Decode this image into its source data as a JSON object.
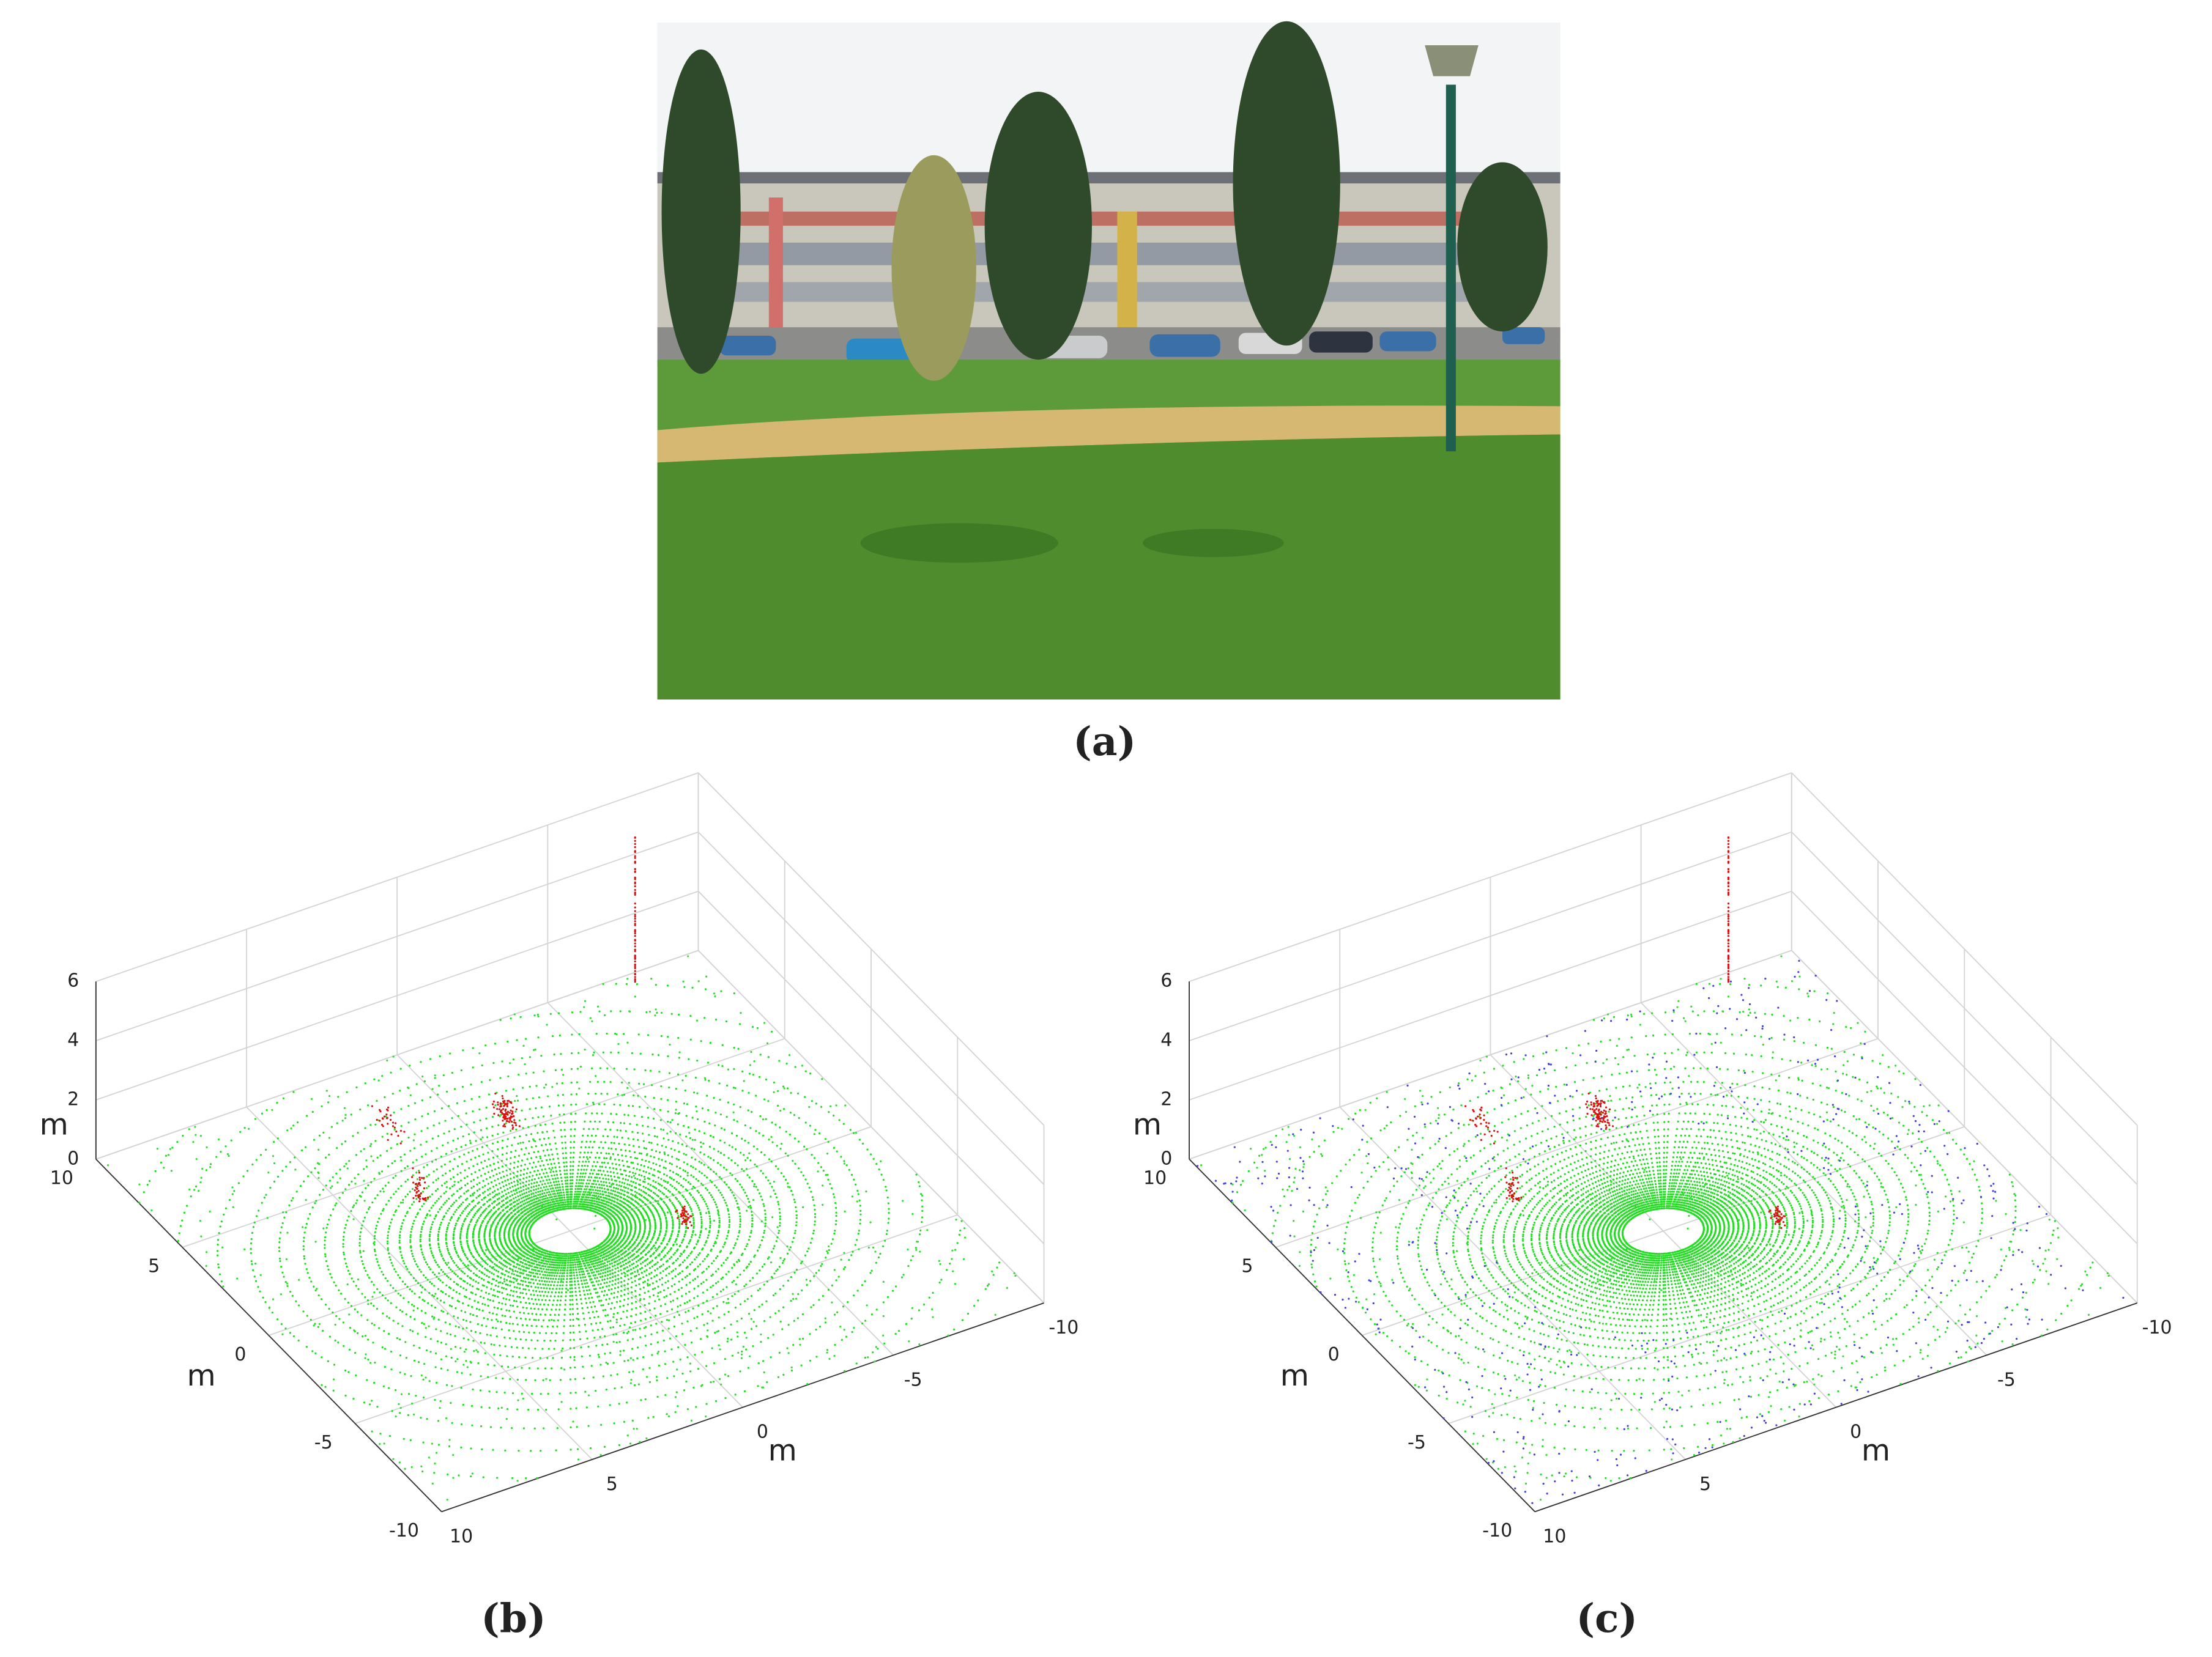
{
  "figure": {
    "panels": [
      {
        "caption": "(a)"
      },
      {
        "caption": "(b)",
        "x_axis": {
          "label": "m",
          "ticks": [
            10,
            5,
            0,
            -5,
            -10
          ]
        },
        "y_axis": {
          "label": "m",
          "ticks": [
            10,
            5,
            0,
            -5,
            -10
          ]
        },
        "z_axis": {
          "label": "m",
          "ticks": [
            0,
            2,
            4,
            6
          ]
        }
      },
      {
        "caption": "(c)",
        "x_axis": {
          "label": "m",
          "ticks": [
            10,
            5,
            0,
            -5,
            -10
          ]
        },
        "y_axis": {
          "label": "m",
          "ticks": [
            10,
            5,
            0,
            -5,
            -10
          ]
        },
        "z_axis": {
          "label": "m",
          "ticks": [
            0,
            2,
            4,
            6
          ]
        }
      }
    ]
  }
}
